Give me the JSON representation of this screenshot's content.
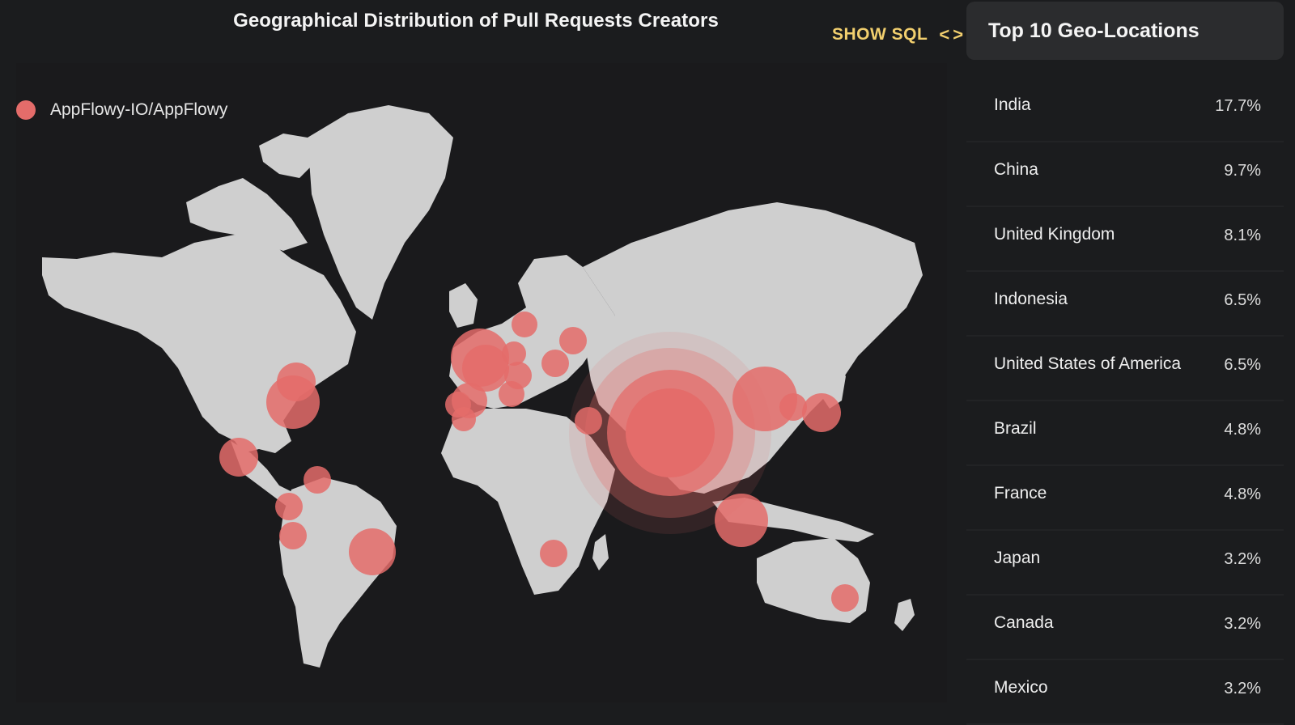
{
  "chart": {
    "title": "Geographical Distribution of Pull Requests Creators",
    "legend_label": "AppFlowy-IO/AppFlowy",
    "legend_color": "#e46c6a"
  },
  "toolbar": {
    "show_sql_label": "SHOW SQL",
    "code_icon": "< >"
  },
  "sidebar": {
    "title": "Top 10 Geo-Locations",
    "items": [
      {
        "country": "India",
        "pct": "17.7%"
      },
      {
        "country": "China",
        "pct": "9.7%"
      },
      {
        "country": "United Kingdom",
        "pct": "8.1%"
      },
      {
        "country": "Indonesia",
        "pct": "6.5%"
      },
      {
        "country": "United States of America",
        "pct": "6.5%"
      },
      {
        "country": "Brazil",
        "pct": "4.8%"
      },
      {
        "country": "France",
        "pct": "4.8%"
      },
      {
        "country": "Japan",
        "pct": "3.2%"
      },
      {
        "country": "Canada",
        "pct": "3.2%"
      },
      {
        "country": "Mexico",
        "pct": "3.2%"
      }
    ]
  },
  "colors": {
    "background": "#1b1c1e",
    "land": "#cfcfcf",
    "bubble": "#e46c6a",
    "accent": "#f2cf6e"
  }
}
